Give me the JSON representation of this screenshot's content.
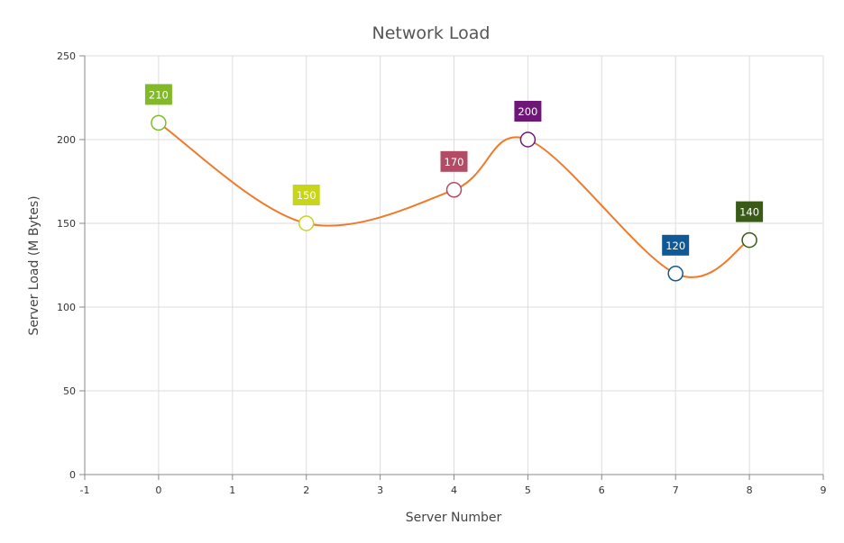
{
  "chart_data": {
    "type": "line",
    "title": "Network Load",
    "xlabel": "Server Number",
    "ylabel": "Server Load (M Bytes)",
    "xlim": [
      -1,
      9
    ],
    "ylim": [
      0,
      250
    ],
    "xticks": [
      -1,
      0,
      1,
      2,
      3,
      4,
      5,
      6,
      7,
      8,
      9
    ],
    "yticks": [
      0,
      50,
      100,
      150,
      200,
      250
    ],
    "grid": true,
    "line_color": "#f07a2a",
    "series": [
      {
        "points": [
          {
            "x": 0,
            "y": 210,
            "label": "210",
            "color": "#82b928"
          },
          {
            "x": 2,
            "y": 150,
            "label": "150",
            "color": "#c8d51a"
          },
          {
            "x": 4,
            "y": 170,
            "label": "170",
            "color": "#b24b63"
          },
          {
            "x": 5,
            "y": 200,
            "label": "200",
            "color": "#6e1779"
          },
          {
            "x": 7,
            "y": 120,
            "label": "120",
            "color": "#0f5a96"
          },
          {
            "x": 8,
            "y": 140,
            "label": "140",
            "color": "#3a5a18"
          }
        ]
      }
    ]
  }
}
